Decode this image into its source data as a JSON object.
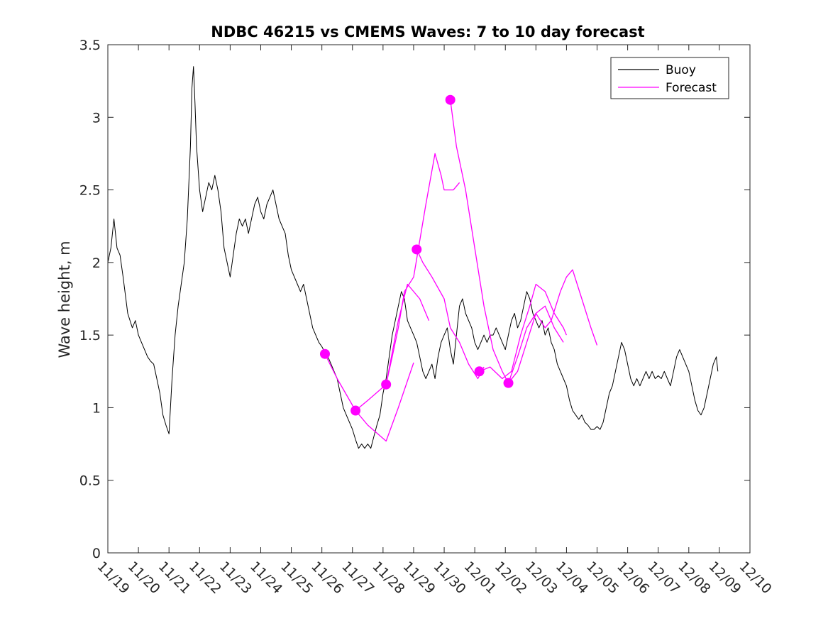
{
  "chart_data": {
    "type": "line",
    "title": "NDBC 46215 vs CMEMS Waves: 7 to 10 day forecast",
    "xlabel": "",
    "ylabel": "Wave height, m",
    "x_tick_labels": [
      "11/19",
      "11/20",
      "11/21",
      "11/22",
      "11/23",
      "11/24",
      "11/25",
      "11/26",
      "11/27",
      "11/28",
      "11/29",
      "11/30",
      "12/01",
      "12/02",
      "12/03",
      "12/04",
      "12/05",
      "12/06",
      "12/07",
      "12/08",
      "12/09",
      "12/10"
    ],
    "y_ticks": [
      0,
      0.5,
      1,
      1.5,
      2,
      2.5,
      3,
      3.5
    ],
    "y_tick_labels": [
      "0",
      "0.5",
      "1",
      "1.5",
      "2",
      "2.5",
      "3",
      "3.5"
    ],
    "xlim": [
      "11/19",
      "12/10"
    ],
    "ylim": [
      0,
      3.5
    ],
    "grid": false,
    "legend_position": "top-right",
    "colors": {
      "buoy": "#000000",
      "forecast": "#ff00ff"
    },
    "series": [
      {
        "name": "Buoy",
        "color": "#000000",
        "points": [
          [
            0.0,
            2.0
          ],
          [
            0.1,
            2.1
          ],
          [
            0.2,
            2.3
          ],
          [
            0.3,
            2.1
          ],
          [
            0.4,
            2.05
          ],
          [
            0.5,
            1.9
          ],
          [
            0.65,
            1.65
          ],
          [
            0.8,
            1.55
          ],
          [
            0.9,
            1.6
          ],
          [
            1.0,
            1.5
          ],
          [
            1.1,
            1.45
          ],
          [
            1.2,
            1.4
          ],
          [
            1.3,
            1.35
          ],
          [
            1.4,
            1.32
          ],
          [
            1.5,
            1.3
          ],
          [
            1.6,
            1.2
          ],
          [
            1.7,
            1.1
          ],
          [
            1.8,
            0.95
          ],
          [
            1.9,
            0.88
          ],
          [
            2.0,
            0.82
          ],
          [
            2.1,
            1.2
          ],
          [
            2.2,
            1.5
          ],
          [
            2.3,
            1.7
          ],
          [
            2.4,
            1.85
          ],
          [
            2.5,
            2.0
          ],
          [
            2.6,
            2.3
          ],
          [
            2.7,
            2.8
          ],
          [
            2.75,
            3.2
          ],
          [
            2.8,
            3.35
          ],
          [
            2.85,
            3.1
          ],
          [
            2.9,
            2.8
          ],
          [
            3.0,
            2.5
          ],
          [
            3.1,
            2.35
          ],
          [
            3.2,
            2.45
          ],
          [
            3.3,
            2.55
          ],
          [
            3.4,
            2.5
          ],
          [
            3.5,
            2.6
          ],
          [
            3.6,
            2.5
          ],
          [
            3.7,
            2.35
          ],
          [
            3.8,
            2.1
          ],
          [
            3.9,
            2.0
          ],
          [
            4.0,
            1.9
          ],
          [
            4.1,
            2.05
          ],
          [
            4.2,
            2.2
          ],
          [
            4.3,
            2.3
          ],
          [
            4.4,
            2.25
          ],
          [
            4.5,
            2.3
          ],
          [
            4.6,
            2.2
          ],
          [
            4.7,
            2.3
          ],
          [
            4.8,
            2.4
          ],
          [
            4.9,
            2.45
          ],
          [
            5.0,
            2.35
          ],
          [
            5.1,
            2.3
          ],
          [
            5.2,
            2.4
          ],
          [
            5.3,
            2.45
          ],
          [
            5.4,
            2.5
          ],
          [
            5.5,
            2.4
          ],
          [
            5.6,
            2.3
          ],
          [
            5.7,
            2.25
          ],
          [
            5.8,
            2.2
          ],
          [
            5.9,
            2.05
          ],
          [
            6.0,
            1.95
          ],
          [
            6.1,
            1.9
          ],
          [
            6.2,
            1.85
          ],
          [
            6.3,
            1.8
          ],
          [
            6.4,
            1.85
          ],
          [
            6.5,
            1.75
          ],
          [
            6.6,
            1.65
          ],
          [
            6.7,
            1.55
          ],
          [
            6.8,
            1.5
          ],
          [
            6.9,
            1.45
          ],
          [
            7.0,
            1.42
          ],
          [
            7.1,
            1.38
          ],
          [
            7.2,
            1.35
          ],
          [
            7.3,
            1.3
          ],
          [
            7.4,
            1.25
          ],
          [
            7.5,
            1.2
          ],
          [
            7.6,
            1.1
          ],
          [
            7.7,
            1.0
          ],
          [
            7.8,
            0.95
          ],
          [
            7.9,
            0.9
          ],
          [
            8.0,
            0.85
          ],
          [
            8.1,
            0.78
          ],
          [
            8.2,
            0.72
          ],
          [
            8.3,
            0.75
          ],
          [
            8.4,
            0.72
          ],
          [
            8.5,
            0.75
          ],
          [
            8.6,
            0.72
          ],
          [
            8.7,
            0.8
          ],
          [
            8.8,
            0.88
          ],
          [
            8.9,
            0.95
          ],
          [
            9.0,
            1.1
          ],
          [
            9.1,
            1.2
          ],
          [
            9.2,
            1.35
          ],
          [
            9.3,
            1.5
          ],
          [
            9.4,
            1.6
          ],
          [
            9.5,
            1.7
          ],
          [
            9.6,
            1.8
          ],
          [
            9.7,
            1.75
          ],
          [
            9.8,
            1.6
          ],
          [
            9.9,
            1.55
          ],
          [
            10.0,
            1.5
          ],
          [
            10.1,
            1.45
          ],
          [
            10.2,
            1.35
          ],
          [
            10.3,
            1.25
          ],
          [
            10.4,
            1.2
          ],
          [
            10.5,
            1.25
          ],
          [
            10.6,
            1.3
          ],
          [
            10.7,
            1.2
          ],
          [
            10.8,
            1.35
          ],
          [
            10.9,
            1.45
          ],
          [
            11.0,
            1.5
          ],
          [
            11.1,
            1.55
          ],
          [
            11.2,
            1.4
          ],
          [
            11.3,
            1.3
          ],
          [
            11.4,
            1.5
          ],
          [
            11.5,
            1.7
          ],
          [
            11.6,
            1.75
          ],
          [
            11.7,
            1.65
          ],
          [
            11.8,
            1.6
          ],
          [
            11.9,
            1.55
          ],
          [
            12.0,
            1.45
          ],
          [
            12.1,
            1.4
          ],
          [
            12.2,
            1.45
          ],
          [
            12.3,
            1.5
          ],
          [
            12.4,
            1.45
          ],
          [
            12.5,
            1.5
          ],
          [
            12.6,
            1.5
          ],
          [
            12.7,
            1.55
          ],
          [
            12.8,
            1.5
          ],
          [
            12.9,
            1.45
          ],
          [
            13.0,
            1.4
          ],
          [
            13.1,
            1.5
          ],
          [
            13.2,
            1.6
          ],
          [
            13.3,
            1.65
          ],
          [
            13.4,
            1.55
          ],
          [
            13.5,
            1.6
          ],
          [
            13.6,
            1.7
          ],
          [
            13.7,
            1.8
          ],
          [
            13.8,
            1.75
          ],
          [
            13.9,
            1.65
          ],
          [
            14.0,
            1.6
          ],
          [
            14.1,
            1.55
          ],
          [
            14.2,
            1.6
          ],
          [
            14.3,
            1.5
          ],
          [
            14.4,
            1.55
          ],
          [
            14.5,
            1.45
          ],
          [
            14.6,
            1.4
          ],
          [
            14.7,
            1.3
          ],
          [
            14.8,
            1.25
          ],
          [
            14.9,
            1.2
          ],
          [
            15.0,
            1.15
          ],
          [
            15.1,
            1.05
          ],
          [
            15.2,
            0.98
          ],
          [
            15.3,
            0.95
          ],
          [
            15.4,
            0.92
          ],
          [
            15.5,
            0.95
          ],
          [
            15.6,
            0.9
          ],
          [
            15.7,
            0.88
          ],
          [
            15.8,
            0.85
          ],
          [
            15.9,
            0.85
          ],
          [
            16.0,
            0.87
          ],
          [
            16.1,
            0.85
          ],
          [
            16.2,
            0.9
          ],
          [
            16.3,
            1.0
          ],
          [
            16.4,
            1.1
          ],
          [
            16.5,
            1.15
          ],
          [
            16.6,
            1.25
          ],
          [
            16.7,
            1.35
          ],
          [
            16.8,
            1.45
          ],
          [
            16.9,
            1.4
          ],
          [
            17.0,
            1.3
          ],
          [
            17.1,
            1.2
          ],
          [
            17.2,
            1.15
          ],
          [
            17.3,
            1.2
          ],
          [
            17.4,
            1.15
          ],
          [
            17.5,
            1.2
          ],
          [
            17.6,
            1.25
          ],
          [
            17.7,
            1.2
          ],
          [
            17.8,
            1.25
          ],
          [
            17.9,
            1.2
          ],
          [
            18.0,
            1.22
          ],
          [
            18.1,
            1.2
          ],
          [
            18.2,
            1.25
          ],
          [
            18.3,
            1.2
          ],
          [
            18.4,
            1.15
          ],
          [
            18.5,
            1.25
          ],
          [
            18.6,
            1.35
          ],
          [
            18.7,
            1.4
          ],
          [
            18.8,
            1.35
          ],
          [
            18.9,
            1.3
          ],
          [
            19.0,
            1.25
          ],
          [
            19.1,
            1.15
          ],
          [
            19.2,
            1.05
          ],
          [
            19.3,
            0.98
          ],
          [
            19.4,
            0.95
          ],
          [
            19.5,
            1.0
          ],
          [
            19.6,
            1.1
          ],
          [
            19.7,
            1.2
          ],
          [
            19.8,
            1.3
          ],
          [
            19.9,
            1.35
          ],
          [
            19.95,
            1.25
          ]
        ]
      },
      {
        "name": "Forecast",
        "color": "#ff00ff",
        "points": [
          [
            7.1,
            1.37
          ],
          [
            7.5,
            1.2
          ],
          [
            8.1,
            0.98
          ],
          [
            8.5,
            0.88
          ],
          [
            9.1,
            0.77
          ],
          [
            9.5,
            1.0
          ],
          [
            10.0,
            1.31
          ]
        ]
      },
      {
        "color": "#ff00ff",
        "points": [
          [
            8.1,
            0.98
          ],
          [
            8.5,
            1.05
          ],
          [
            9.1,
            1.16
          ],
          [
            9.5,
            1.6
          ],
          [
            9.8,
            1.85
          ],
          [
            10.2,
            1.75
          ],
          [
            10.5,
            1.6
          ]
        ]
      },
      {
        "color": "#ff00ff",
        "points": [
          [
            9.1,
            1.16
          ],
          [
            9.3,
            1.35
          ],
          [
            9.5,
            1.55
          ],
          [
            9.7,
            1.8
          ],
          [
            10.0,
            1.9
          ],
          [
            10.4,
            2.4
          ],
          [
            10.7,
            2.75
          ],
          [
            10.9,
            2.6
          ],
          [
            11.0,
            2.5
          ],
          [
            11.3,
            2.5
          ],
          [
            11.5,
            2.55
          ]
        ]
      },
      {
        "color": "#ff00ff",
        "points": [
          [
            10.1,
            2.09
          ],
          [
            10.3,
            2.0
          ],
          [
            10.6,
            1.9
          ],
          [
            11.0,
            1.75
          ],
          [
            11.2,
            1.55
          ],
          [
            11.5,
            1.45
          ],
          [
            11.8,
            1.3
          ],
          [
            12.1,
            1.2
          ],
          [
            12.3,
            1.28
          ]
        ]
      },
      {
        "color": "#ff00ff",
        "points": [
          [
            11.2,
            3.12
          ],
          [
            11.4,
            2.8
          ],
          [
            11.7,
            2.5
          ],
          [
            12.0,
            2.1
          ],
          [
            12.3,
            1.7
          ],
          [
            12.6,
            1.4
          ],
          [
            12.9,
            1.25
          ],
          [
            13.1,
            1.17
          ],
          [
            13.4,
            1.25
          ],
          [
            13.7,
            1.45
          ],
          [
            14.0,
            1.65
          ],
          [
            14.3,
            1.7
          ],
          [
            14.6,
            1.55
          ],
          [
            14.9,
            1.45
          ]
        ]
      },
      {
        "color": "#ff00ff",
        "points": [
          [
            12.15,
            1.25
          ],
          [
            12.5,
            1.28
          ],
          [
            12.9,
            1.2
          ],
          [
            13.2,
            1.25
          ],
          [
            13.5,
            1.5
          ],
          [
            13.8,
            1.7
          ],
          [
            14.0,
            1.85
          ],
          [
            14.3,
            1.8
          ],
          [
            14.6,
            1.65
          ],
          [
            14.9,
            1.55
          ],
          [
            15.0,
            1.5
          ]
        ]
      },
      {
        "color": "#ff00ff",
        "points": [
          [
            13.1,
            1.17
          ],
          [
            13.4,
            1.35
          ],
          [
            13.7,
            1.55
          ],
          [
            14.0,
            1.65
          ],
          [
            14.3,
            1.55
          ],
          [
            14.5,
            1.6
          ],
          [
            14.8,
            1.8
          ],
          [
            15.0,
            1.9
          ],
          [
            15.2,
            1.95
          ],
          [
            15.5,
            1.75
          ],
          [
            15.8,
            1.55
          ],
          [
            16.0,
            1.43
          ]
        ]
      }
    ],
    "forecast_start_markers": [
      [
        7.1,
        1.37
      ],
      [
        8.1,
        0.98
      ],
      [
        9.1,
        1.16
      ],
      [
        10.1,
        2.09
      ],
      [
        11.2,
        3.12
      ],
      [
        12.15,
        1.25
      ],
      [
        13.1,
        1.17
      ]
    ],
    "legend": [
      "Buoy",
      "Forecast"
    ]
  }
}
